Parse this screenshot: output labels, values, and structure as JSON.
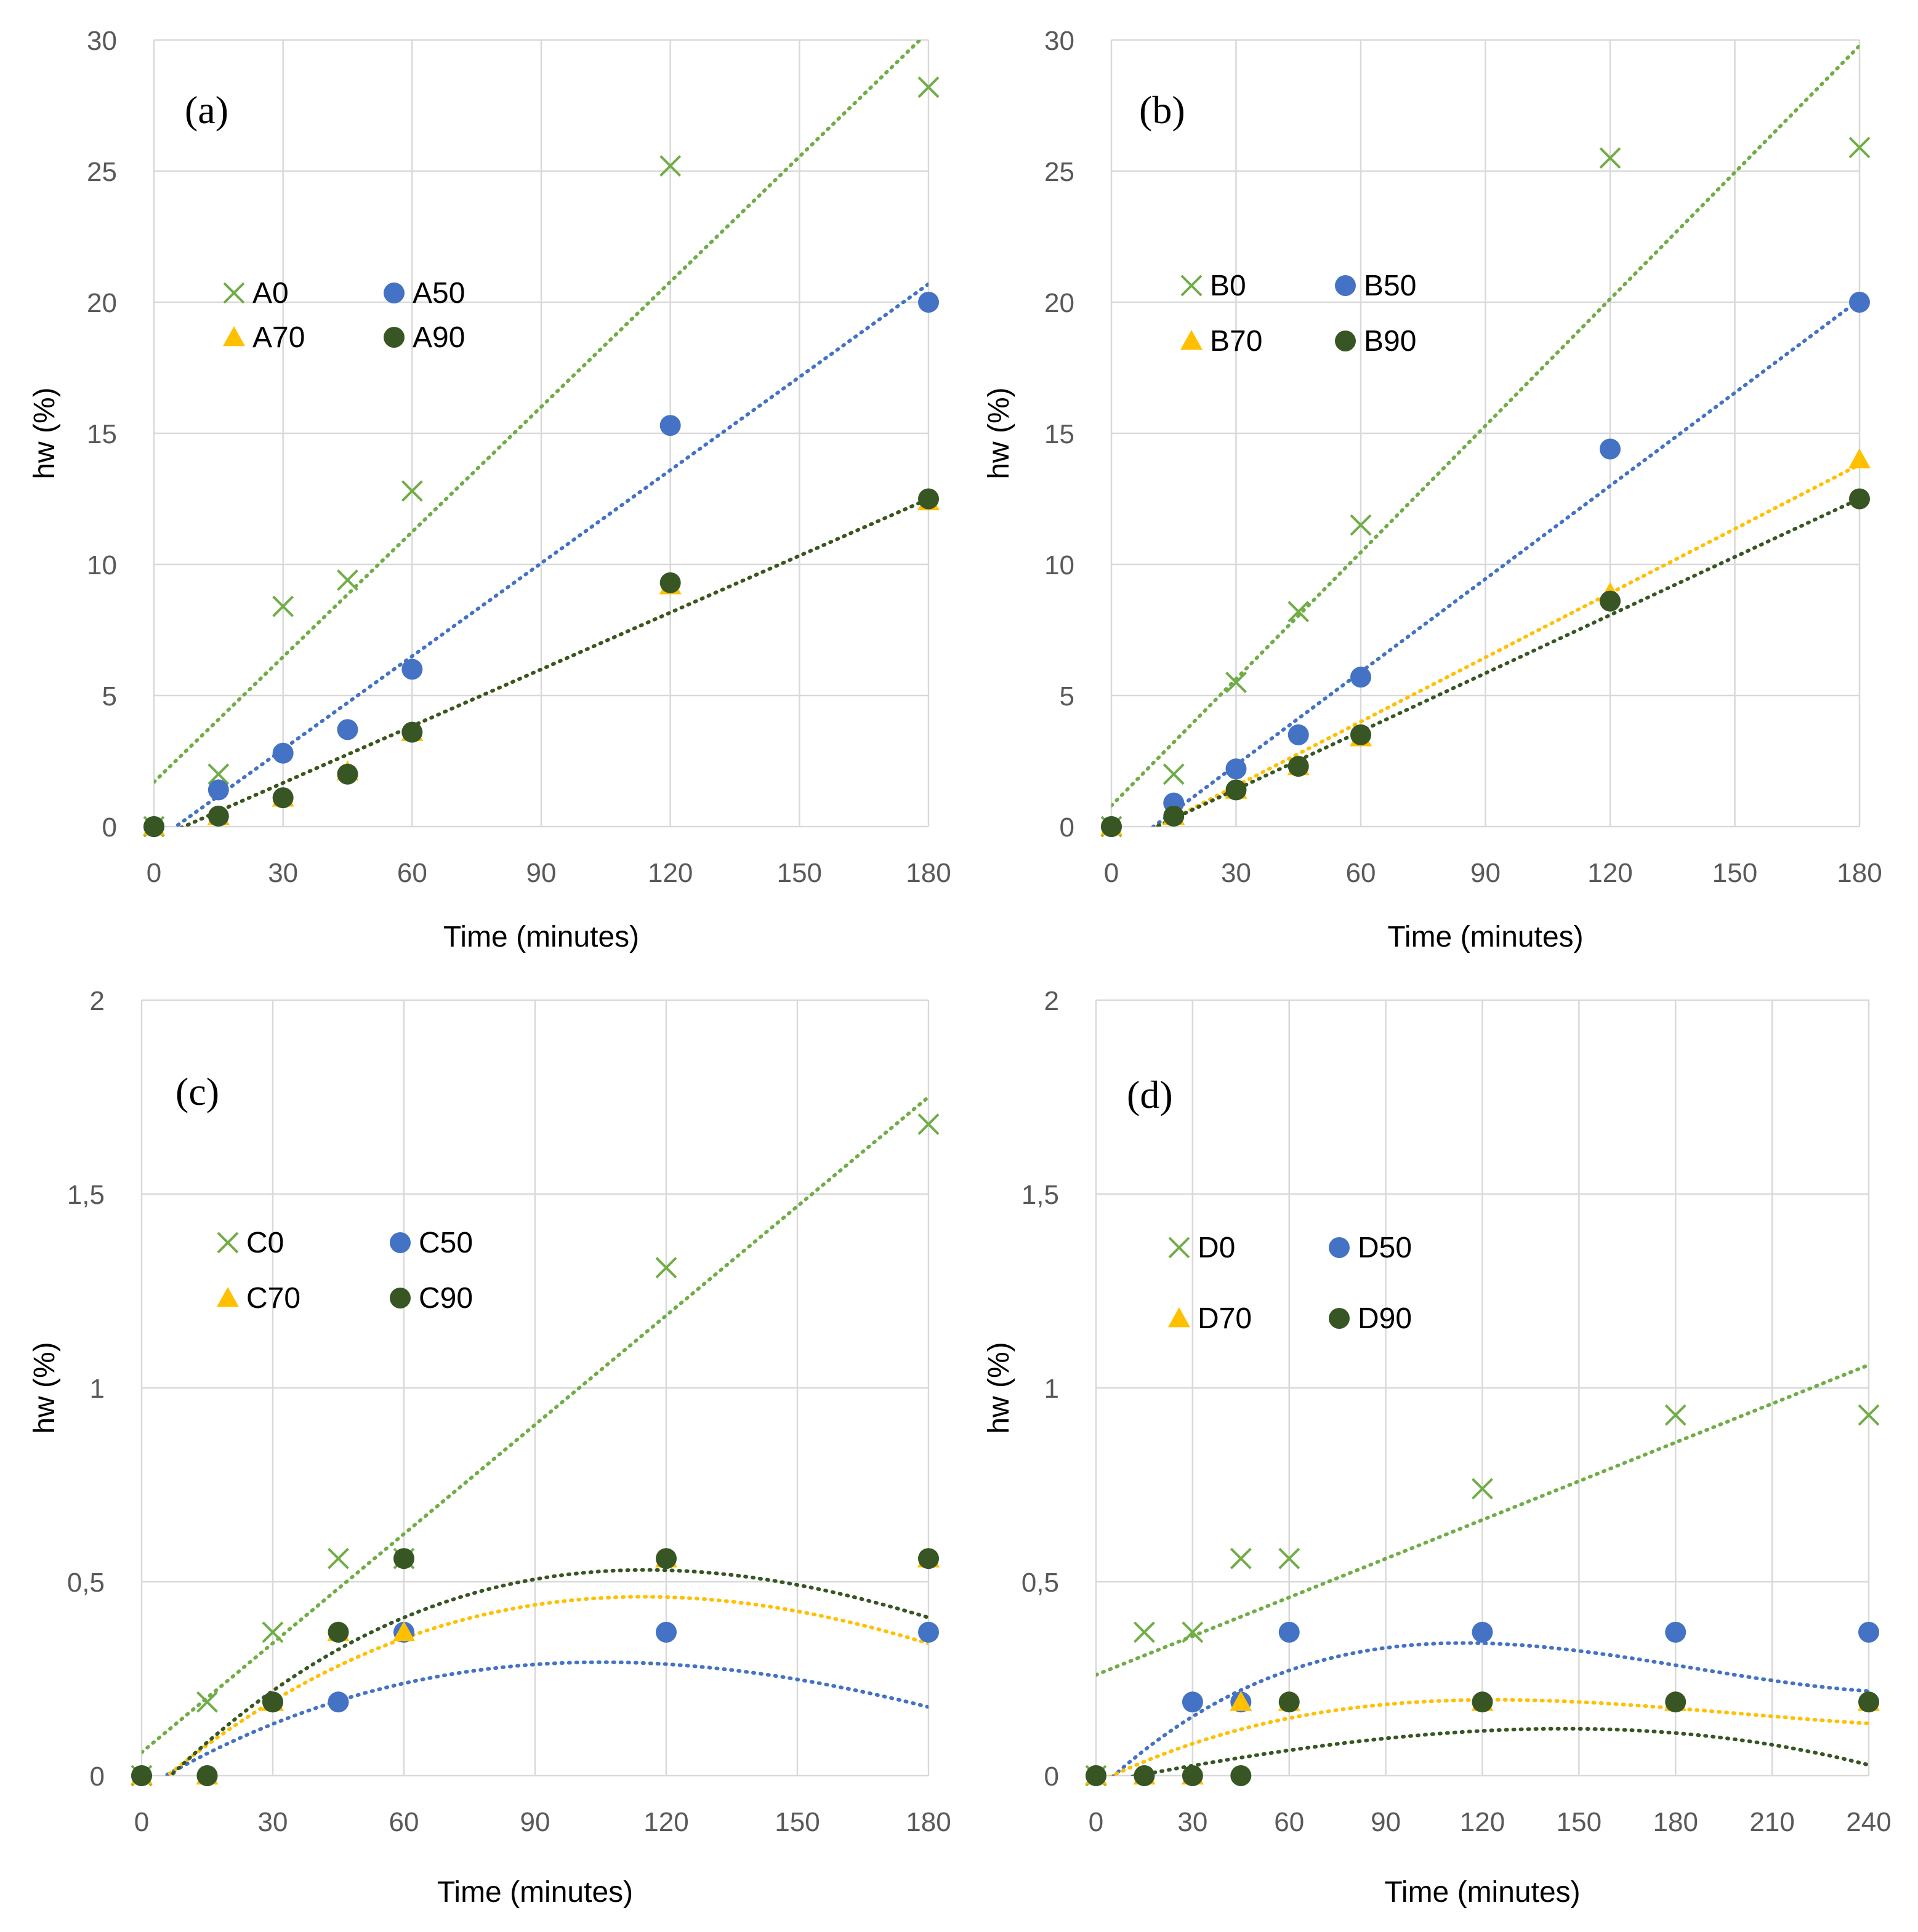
{
  "chart_data": [
    {
      "type": "scatter",
      "panel_label": "(a)",
      "xlabel": "Time (minutes)",
      "ylabel": "hw (%)",
      "xlim": [
        0,
        180
      ],
      "ylim": [
        0,
        30
      ],
      "xticks": [
        0,
        30,
        60,
        90,
        120,
        150,
        180
      ],
      "xtick_labels": [
        "0",
        "30",
        "60",
        "90",
        "120",
        "150",
        "180"
      ],
      "yticks": [
        0,
        5,
        10,
        15,
        20,
        25,
        30
      ],
      "ytick_labels": [
        "0",
        "5",
        "10",
        "15",
        "20",
        "25",
        "30"
      ],
      "grid": true,
      "legend_position": "upper-left",
      "series": [
        {
          "name": "A0",
          "marker": "x",
          "color": "#70ad47",
          "x": [
            0,
            15,
            30,
            45,
            60,
            120,
            180
          ],
          "y": [
            0,
            2.0,
            8.4,
            9.4,
            12.8,
            25.2,
            28.2
          ],
          "trend": {
            "kind": "linear",
            "coef": [
              1.7,
              0.159
            ]
          }
        },
        {
          "name": "A50",
          "marker": "circle",
          "color": "#4472c4",
          "x": [
            0,
            15,
            30,
            45,
            60,
            120,
            180
          ],
          "y": [
            0,
            1.4,
            2.8,
            3.7,
            6.0,
            15.3,
            20.0
          ],
          "trend": {
            "kind": "linear",
            "coef": [
              -0.6,
              0.1183
            ]
          }
        },
        {
          "name": "A70",
          "marker": "triangle",
          "color": "#ffc000",
          "x": [
            0,
            15,
            30,
            45,
            60,
            120,
            180
          ],
          "y": [
            0,
            0.4,
            1.1,
            2.1,
            3.6,
            9.2,
            12.4
          ],
          "trend": {
            "kind": "linear",
            "coef": [
              -0.5,
              0.0722
            ]
          }
        },
        {
          "name": "A90",
          "marker": "circle",
          "color": "#375623",
          "x": [
            0,
            15,
            30,
            45,
            60,
            120,
            180
          ],
          "y": [
            0,
            0.4,
            1.1,
            2.0,
            3.6,
            9.3,
            12.5
          ],
          "trend": {
            "kind": "linear",
            "coef": [
              -0.5,
              0.0722
            ]
          }
        }
      ]
    },
    {
      "type": "scatter",
      "panel_label": "(b)",
      "xlabel": "Time (minutes)",
      "ylabel": "hw (%)",
      "xlim": [
        0,
        180
      ],
      "ylim": [
        0,
        30
      ],
      "xticks": [
        0,
        30,
        60,
        90,
        120,
        150,
        180
      ],
      "xtick_labels": [
        "0",
        "30",
        "60",
        "90",
        "120",
        "150",
        "180"
      ],
      "yticks": [
        0,
        5,
        10,
        15,
        20,
        25,
        30
      ],
      "ytick_labels": [
        "0",
        "5",
        "10",
        "15",
        "20",
        "25",
        "30"
      ],
      "grid": true,
      "legend_position": "upper-left",
      "series": [
        {
          "name": "B0",
          "marker": "x",
          "color": "#70ad47",
          "x": [
            0,
            15,
            30,
            45,
            60,
            120,
            180
          ],
          "y": [
            0,
            2.0,
            5.5,
            8.2,
            11.5,
            25.5,
            25.9
          ],
          "trend": {
            "kind": "linear",
            "coef": [
              0.8,
              0.161
            ]
          }
        },
        {
          "name": "B50",
          "marker": "circle",
          "color": "#4472c4",
          "x": [
            0,
            15,
            30,
            45,
            60,
            120,
            180
          ],
          "y": [
            0,
            0.9,
            2.2,
            3.5,
            5.7,
            14.4,
            20.0
          ],
          "trend": {
            "kind": "linear",
            "coef": [
              -1.2,
              0.1183
            ]
          }
        },
        {
          "name": "B70",
          "marker": "triangle",
          "color": "#ffc000",
          "x": [
            0,
            15,
            30,
            45,
            60,
            120,
            180
          ],
          "y": [
            0,
            0.4,
            1.4,
            2.3,
            3.4,
            8.9,
            14.0
          ],
          "trend": {
            "kind": "linear",
            "coef": [
              -0.9,
              0.0817
            ]
          }
        },
        {
          "name": "B90",
          "marker": "circle",
          "color": "#375623",
          "x": [
            0,
            15,
            30,
            45,
            60,
            120,
            180
          ],
          "y": [
            0,
            0.4,
            1.4,
            2.3,
            3.5,
            8.6,
            12.5
          ],
          "trend": {
            "kind": "linear",
            "coef": [
              -0.8,
              0.0739
            ]
          }
        }
      ]
    },
    {
      "type": "scatter",
      "panel_label": "(c)",
      "xlabel": "Time (minutes)",
      "ylabel": "hw (%)",
      "xlim": [
        0,
        180
      ],
      "ylim": [
        0,
        2
      ],
      "xticks": [
        0,
        30,
        60,
        90,
        120,
        150,
        180
      ],
      "xtick_labels": [
        "0",
        "30",
        "60",
        "90",
        "120",
        "150",
        "180"
      ],
      "yticks": [
        0,
        0.5,
        1,
        1.5,
        2
      ],
      "ytick_labels": [
        "0",
        "0,5",
        "1",
        "1,5",
        "2"
      ],
      "grid": true,
      "legend_position": "upper-left",
      "series": [
        {
          "name": "C0",
          "marker": "x",
          "color": "#70ad47",
          "x": [
            0,
            15,
            30,
            45,
            60,
            120,
            180
          ],
          "y": [
            0,
            0.19,
            0.37,
            0.56,
            0.56,
            1.31,
            1.68
          ],
          "trend": {
            "kind": "linear",
            "coef": [
              0.06,
              0.00939
            ]
          }
        },
        {
          "name": "C50",
          "marker": "circle",
          "color": "#4472c4",
          "x": [
            0,
            15,
            30,
            45,
            60,
            120,
            180
          ],
          "y": [
            0,
            0,
            0.19,
            0.19,
            0.37,
            0.37,
            0.37
          ],
          "trend": {
            "kind": "poly",
            "coef": [
              -0.036,
              0.0068,
              -4.02e-05,
              5e-08
            ]
          }
        },
        {
          "name": "C70",
          "marker": "triangle",
          "color": "#ffc000",
          "x": [
            0,
            15,
            30,
            45,
            60,
            120,
            180
          ],
          "y": [
            0,
            0,
            0.19,
            0.37,
            0.37,
            0.56,
            0.56
          ],
          "trend": {
            "kind": "poly",
            "coef": [
              -0.056,
              0.0098,
              -5.3e-05,
              6e-08
            ]
          }
        },
        {
          "name": "C90",
          "marker": "circle",
          "color": "#375623",
          "x": [
            0,
            15,
            30,
            45,
            60,
            120,
            180
          ],
          "y": [
            0,
            0,
            0.19,
            0.37,
            0.56,
            0.56,
            0.56
          ],
          "trend": {
            "kind": "poly",
            "coef": [
              -0.075,
              0.0117,
              -6.63e-05,
              9e-08
            ]
          }
        }
      ]
    },
    {
      "type": "scatter",
      "panel_label": "(d)",
      "xlabel": "Time (minutes)",
      "ylabel": "hw (%)",
      "xlim": [
        0,
        240
      ],
      "ylim": [
        0,
        2
      ],
      "xticks": [
        0,
        30,
        60,
        90,
        120,
        150,
        180,
        210,
        240
      ],
      "xtick_labels": [
        "0",
        "30",
        "60",
        "90",
        "120",
        "150",
        "180",
        "210",
        "240"
      ],
      "yticks": [
        0,
        0.5,
        1,
        1.5,
        2
      ],
      "ytick_labels": [
        "0",
        "0,5",
        "1",
        "1,5",
        "2"
      ],
      "grid": true,
      "legend_position": "upper-left",
      "series": [
        {
          "name": "D0",
          "marker": "x",
          "color": "#70ad47",
          "x": [
            0,
            15,
            30,
            45,
            60,
            120,
            180,
            240
          ],
          "y": [
            0,
            0.37,
            0.37,
            0.56,
            0.56,
            0.74,
            0.93,
            0.93
          ],
          "trend": {
            "kind": "linear",
            "coef": [
              0.26,
              0.00333
            ]
          }
        },
        {
          "name": "D50",
          "marker": "circle",
          "color": "#4472c4",
          "x": [
            0,
            15,
            30,
            45,
            60,
            120,
            180,
            240
          ],
          "y": [
            0,
            0,
            0.19,
            0.19,
            0.37,
            0.37,
            0.37,
            0.37
          ],
          "trend": {
            "kind": "poly",
            "coef": [
              -0.042,
              0.0079,
              -5e-05,
              9e-08
            ]
          }
        },
        {
          "name": "D70",
          "marker": "triangle",
          "color": "#ffc000",
          "x": [
            0,
            15,
            30,
            45,
            60,
            120,
            180,
            240
          ],
          "y": [
            0,
            0,
            0,
            0.19,
            0.19,
            0.19,
            0.19,
            0.19
          ],
          "trend": {
            "kind": "poly",
            "coef": [
              -0.02,
              0.0041,
              -2.4e-05,
              4e-08
            ]
          }
        },
        {
          "name": "D90",
          "marker": "circle",
          "color": "#375623",
          "x": [
            0,
            15,
            30,
            45,
            60,
            120,
            180,
            240
          ],
          "y": [
            0,
            0,
            0,
            0,
            0.19,
            0.19,
            0.19,
            0.19
          ],
          "trend": {
            "kind": "poly",
            "coef": [
              -0.02,
              0.0016,
              -2e-06,
              -1.6e-08
            ]
          }
        }
      ]
    }
  ]
}
